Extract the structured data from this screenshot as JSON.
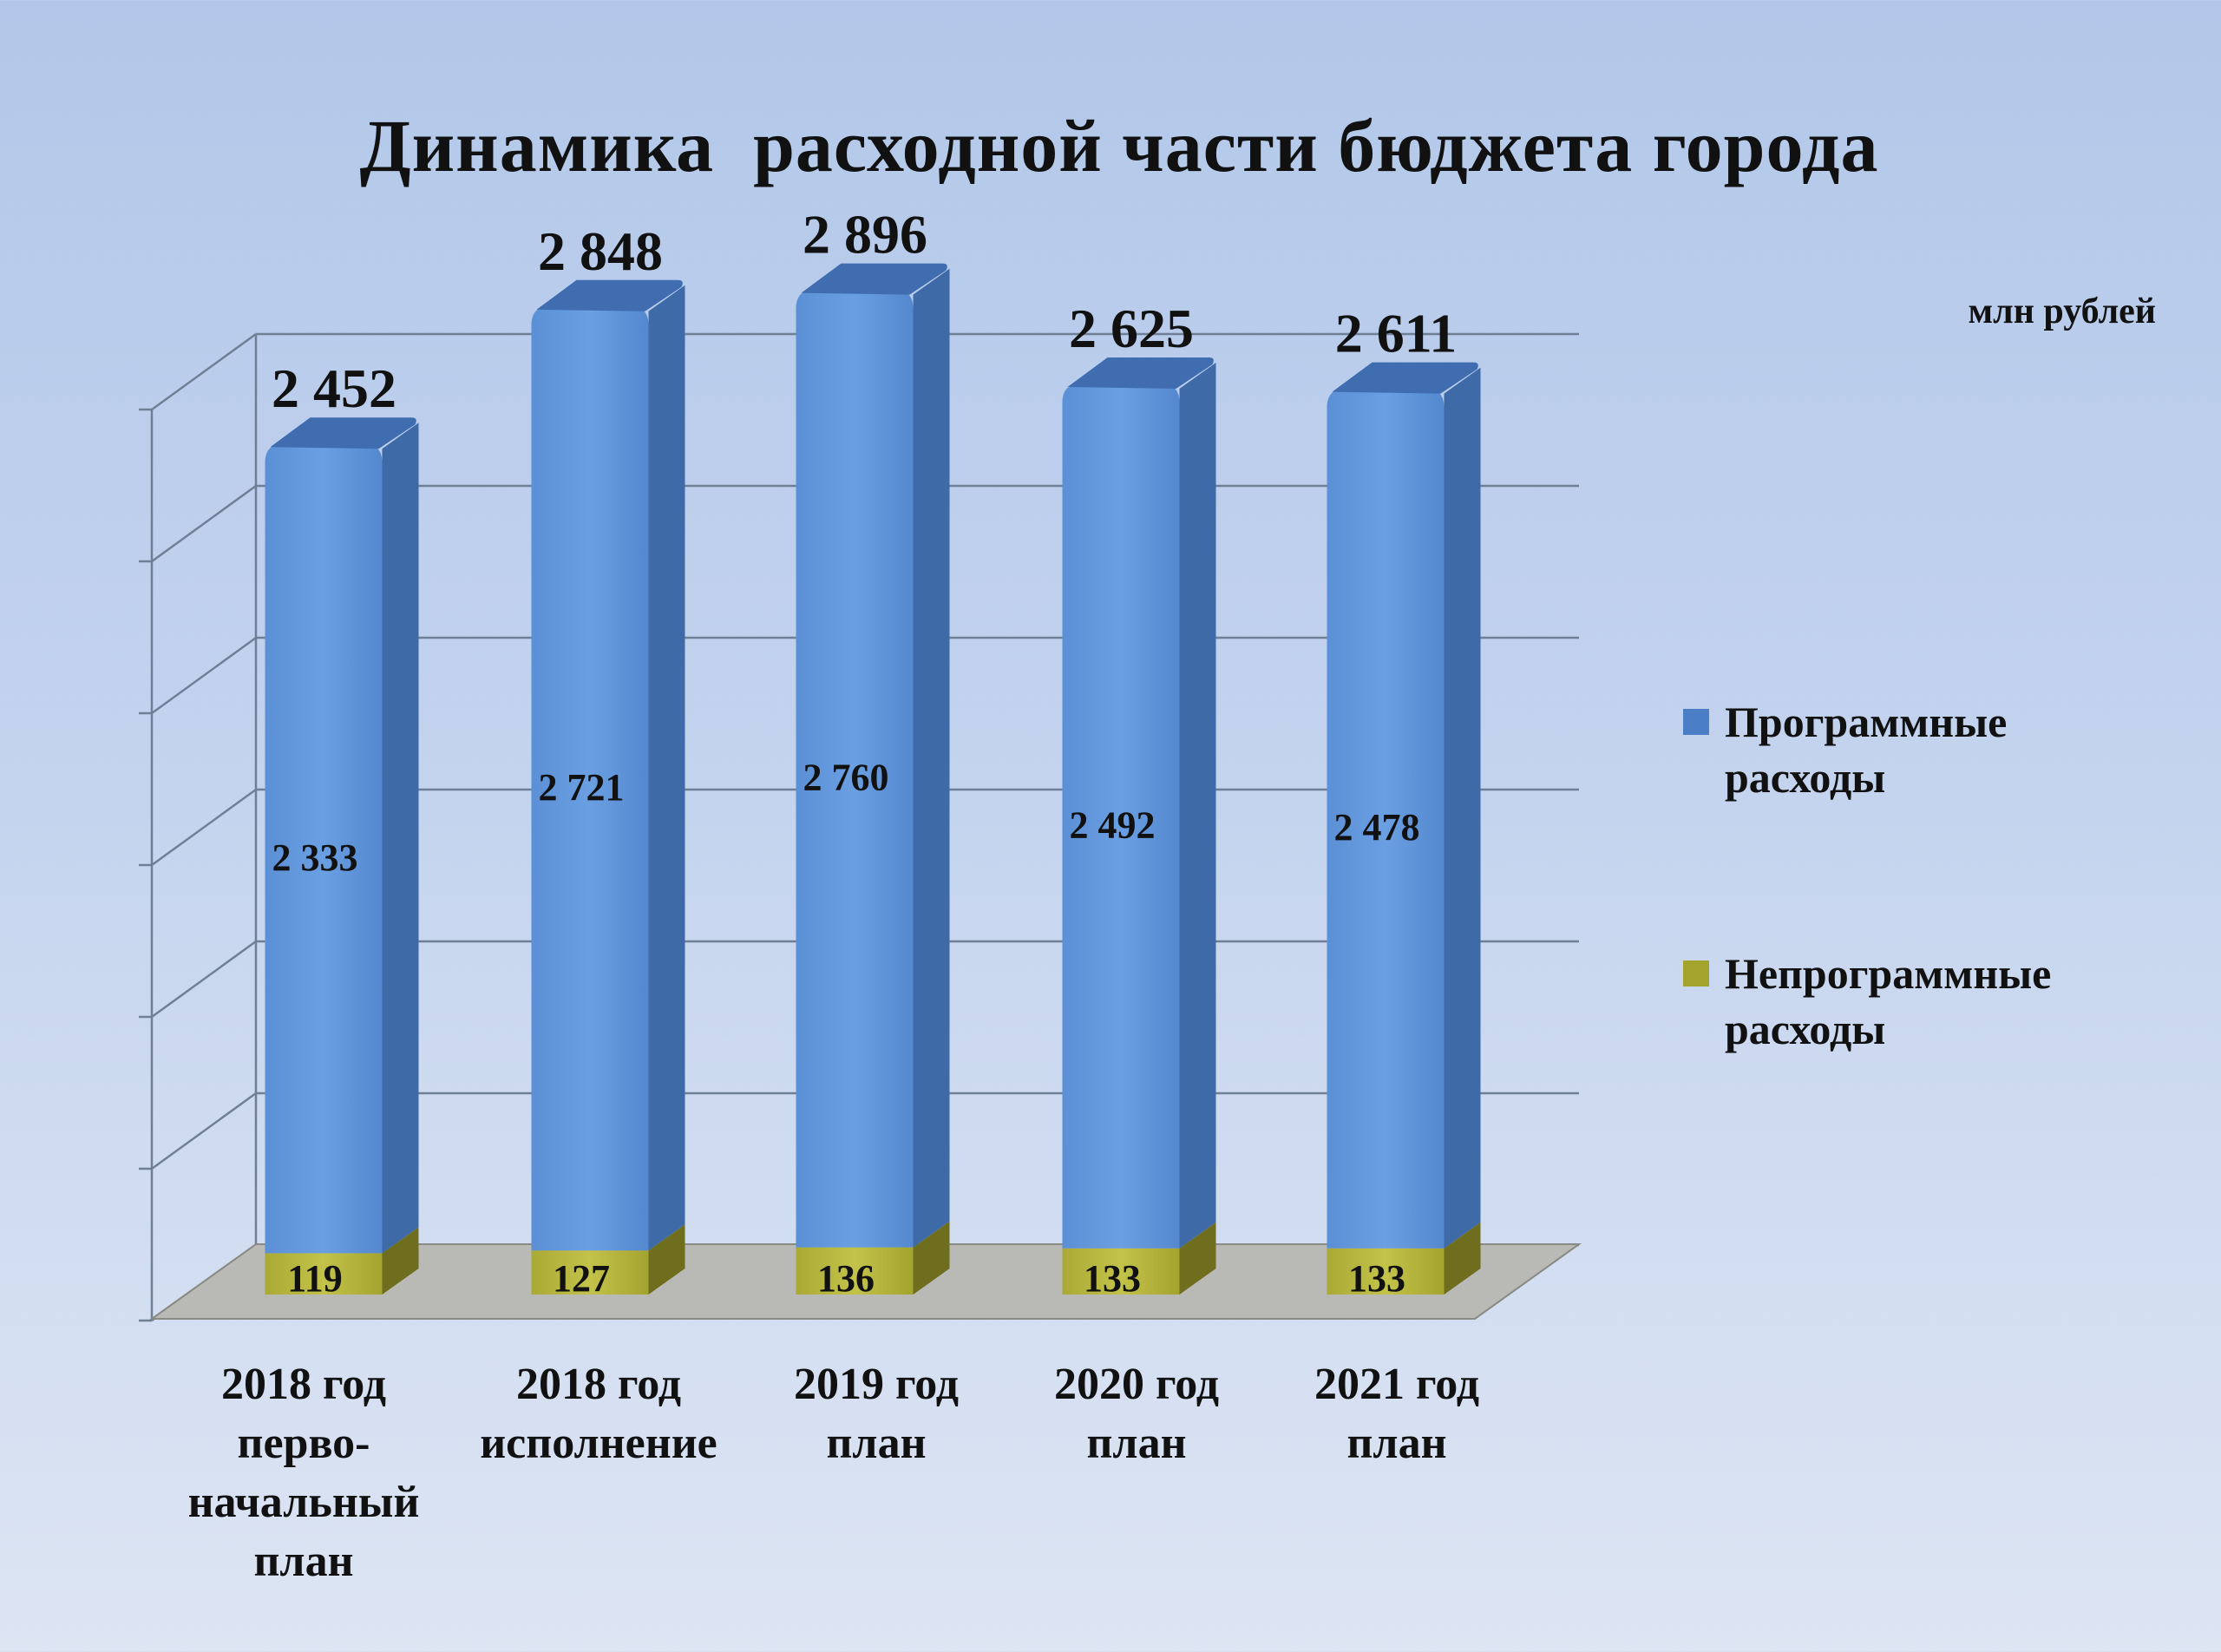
{
  "title": "Динамика  расходной части бюджета города",
  "unit_label": "млн рублей",
  "chart_data": {
    "type": "bar",
    "stacked": true,
    "three_d": true,
    "categories": [
      "2018 год перво-начальный план",
      "2018 год исполнение",
      "2019 год план",
      "2020 год план",
      "2021 год план"
    ],
    "category_lines": [
      [
        "2018 год",
        "перво-",
        "начальный",
        "план"
      ],
      [
        "2018 год",
        "исполнение"
      ],
      [
        "2019 год",
        "план"
      ],
      [
        "2020 год",
        "план"
      ],
      [
        "2021 год",
        "план"
      ]
    ],
    "series": [
      {
        "name": "Непрограммные расходы",
        "values": [
          119,
          127,
          136,
          133,
          133
        ],
        "labels": [
          "119",
          "127",
          "136",
          "133",
          "133"
        ],
        "color": "#b4b43c"
      },
      {
        "name": "Программные расходы",
        "values": [
          2333,
          2721,
          2760,
          2492,
          2478
        ],
        "labels": [
          "2 333",
          "2 721",
          "2 760",
          "2 492",
          "2 478"
        ],
        "color": "#6297dc"
      }
    ],
    "totals": [
      2452,
      2848,
      2896,
      2625,
      2611
    ],
    "total_labels": [
      "2 452",
      "2 848",
      "2 896",
      "2 625",
      "2 611"
    ],
    "ylim": [
      0,
      3000
    ],
    "grid": true,
    "legend": "right"
  },
  "legend": [
    {
      "line1": "Программные",
      "line2": "расходы",
      "color": "#4a7fc8"
    },
    {
      "line1": "Непрограммные",
      "line2": "расходы",
      "color": "#a3a32e"
    }
  ]
}
